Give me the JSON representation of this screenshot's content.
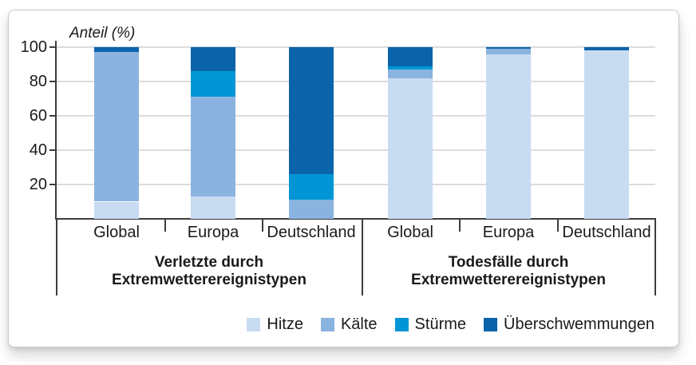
{
  "chart_data": {
    "type": "bar",
    "stacked": true,
    "ylabel": "Anteil (%)",
    "ylim": [
      0,
      100
    ],
    "yticks": [
      20,
      40,
      60,
      80,
      100
    ],
    "grid": true,
    "legend_position": "bottom-right",
    "legend": [
      {
        "key": "hitze",
        "name": "Hitze",
        "color": "#c7dbf1"
      },
      {
        "key": "kaelte",
        "name": "Kälte",
        "color": "#8ab3e0"
      },
      {
        "key": "stuerme",
        "name": "Stürme",
        "color": "#0096d5"
      },
      {
        "key": "ueberschwemmungen",
        "name": "Überschwemmungen",
        "color": "#0b63a9"
      }
    ],
    "groups": [
      {
        "key": "verletzte",
        "label_lines": [
          "Verletzte durch",
          "Extremwetterereignistypen"
        ],
        "bars": [
          {
            "category": "Global",
            "values": [
              10,
              87,
              0,
              3
            ]
          },
          {
            "category": "Europa",
            "values": [
              13,
              58,
              15,
              14
            ]
          },
          {
            "category": "Deutschland",
            "values": [
              0,
              11,
              15,
              74
            ]
          }
        ]
      },
      {
        "key": "todesfaelle",
        "label_lines": [
          "Todesfälle durch",
          "Extremwetterereignistypen"
        ],
        "bars": [
          {
            "category": "Global",
            "values": [
              82,
              5,
              2,
              11
            ]
          },
          {
            "category": "Europa",
            "values": [
              96,
              3,
              0,
              1
            ]
          },
          {
            "category": "Deutschland",
            "values": [
              98,
              0,
              0,
              2
            ]
          }
        ]
      }
    ]
  },
  "colors": {
    "axis": "#3d3d3d",
    "gridline": "#dcdcdc",
    "text": "#1a1a1a",
    "card_border": "#c8c8c8",
    "background": "#ffffff"
  }
}
